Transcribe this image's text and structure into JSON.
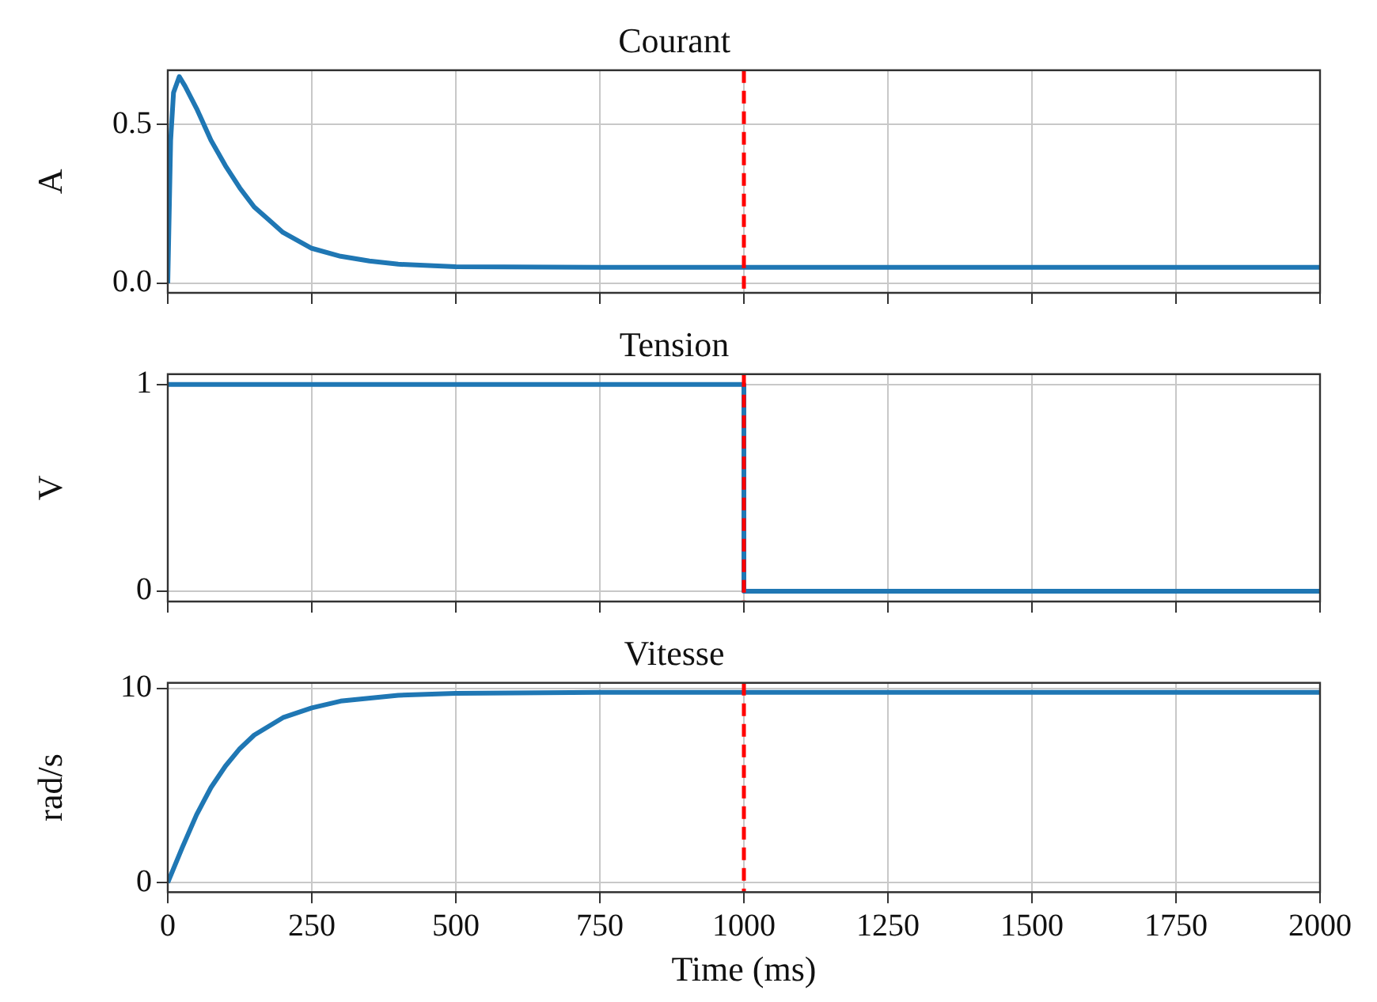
{
  "chart_data": [
    {
      "type": "line",
      "title": "Courant",
      "ylabel": "A",
      "xlim": [
        0,
        2000
      ],
      "xticks": [
        0,
        250,
        500,
        750,
        1000,
        1250,
        1500,
        1750,
        2000
      ],
      "ylim": [
        -0.03,
        0.67
      ],
      "yticks": [
        {
          "value": 0,
          "label": "0.0"
        },
        0.5
      ],
      "grid": true,
      "tick_labels": "y",
      "marker": "none",
      "line_style": "solid",
      "series": [
        {
          "color": "#1f77b4",
          "x": [
            0,
            5,
            10,
            20,
            30,
            50,
            75,
            100,
            125,
            150,
            175,
            200,
            250,
            300,
            350,
            400,
            500,
            750,
            1000,
            2000
          ],
          "values": [
            0,
            0.45,
            0.6,
            0.65,
            0.62,
            0.55,
            0.45,
            0.37,
            0.3,
            0.24,
            0.2,
            0.16,
            0.11,
            0.085,
            0.07,
            0.06,
            0.052,
            0.05,
            0.05,
            0.05
          ]
        }
      ],
      "ref_lines": [
        {
          "axis": "x",
          "value": 1000,
          "color": "#ff0000",
          "line_style": "dashed"
        }
      ]
    },
    {
      "type": "line",
      "title": "Tension",
      "ylabel": "V",
      "xlim": [
        0,
        2000
      ],
      "xticks": [
        0,
        250,
        500,
        750,
        1000,
        1250,
        1500,
        1750,
        2000
      ],
      "ylim": [
        -0.05,
        1.05
      ],
      "yticks": [
        0,
        1
      ],
      "grid": true,
      "tick_labels": "y",
      "marker": "none",
      "line_style": "solid",
      "series": [
        {
          "color": "#1f77b4",
          "x": [
            0,
            1000,
            1000,
            2000
          ],
          "values": [
            1,
            1,
            0,
            0
          ]
        }
      ],
      "ref_lines": [
        {
          "axis": "x",
          "value": 1000,
          "color": "#ff0000",
          "line_style": "dashed"
        }
      ]
    },
    {
      "type": "line",
      "title": "Vitesse",
      "ylabel": "rad/s",
      "xlabel": "Time (ms)",
      "xlim": [
        0,
        2000
      ],
      "xticks": [
        0,
        250,
        500,
        750,
        1000,
        1250,
        1500,
        1750,
        2000
      ],
      "ylim": [
        -0.49,
        10.29
      ],
      "yticks": [
        0,
        10
      ],
      "grid": true,
      "marker": "none",
      "line_style": "solid",
      "series": [
        {
          "color": "#1f77b4",
          "x": [
            0,
            25,
            50,
            75,
            100,
            125,
            150,
            200,
            250,
            300,
            400,
            500,
            750,
            2000
          ],
          "values": [
            0,
            1.8,
            3.5,
            4.9,
            6,
            6.9,
            7.6,
            8.5,
            9,
            9.35,
            9.65,
            9.75,
            9.8,
            9.8
          ]
        }
      ],
      "ref_lines": [
        {
          "axis": "x",
          "value": 1000,
          "color": "#ff0000",
          "line_style": "dashed"
        }
      ]
    }
  ]
}
